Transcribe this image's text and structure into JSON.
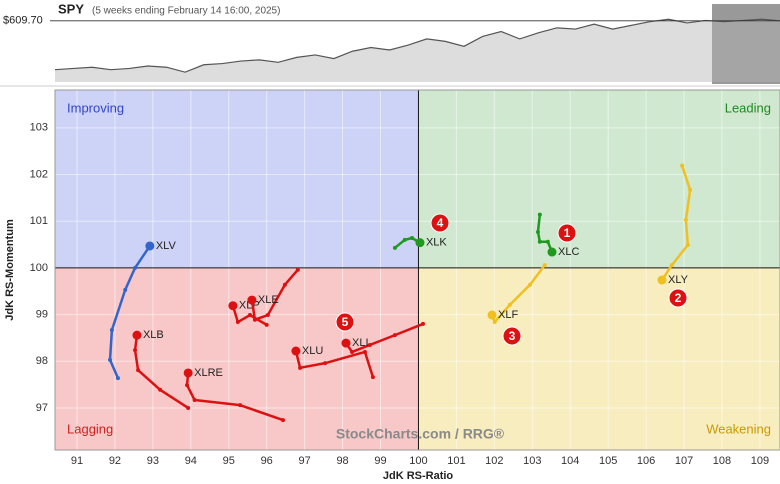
{
  "chart_data": {
    "type": "rrg",
    "header": {
      "symbol": "SPY",
      "subtitle": "(5 weeks ending February 14 16:00, 2025)"
    },
    "price": {
      "values": [
        570,
        571,
        572,
        570,
        571,
        573,
        572,
        568,
        574,
        575,
        577,
        578,
        576,
        580,
        582,
        579,
        585,
        588,
        586,
        590,
        595,
        593,
        589,
        597,
        601,
        595,
        600,
        604,
        603,
        607,
        603,
        606,
        609,
        611,
        608,
        610,
        609,
        610,
        611,
        609.7
      ],
      "last": {
        "value": 609.7,
        "label": "$609.70"
      },
      "ylim": [
        560,
        612
      ]
    },
    "xlabel": "JdK RS-Ratio",
    "ylabel": "JdK RS-Momentum",
    "xlim": [
      90.42,
      109.53
    ],
    "ylim": [
      96.1,
      103.81
    ],
    "xticks": [
      91,
      92,
      93,
      94,
      95,
      96,
      97,
      98,
      99,
      100,
      101,
      102,
      103,
      104,
      105,
      106,
      107,
      108,
      109
    ],
    "yticks": [
      97,
      98,
      99,
      100,
      101,
      102,
      103
    ],
    "center": [
      100,
      100
    ],
    "quadrants": {
      "improving": "Improving",
      "leading": "Leading",
      "lagging": "Lagging",
      "weakening": "Weakening"
    },
    "watermark": "StockCharts.com / RRG®",
    "markers": [
      "1",
      "2",
      "3",
      "4",
      "5"
    ],
    "series": [
      {
        "name": "XLV",
        "color": "#3366cc",
        "x": [
          92.08,
          91.87,
          91.92,
          92.27,
          92.53,
          92.92
        ],
        "y": [
          97.64,
          98.03,
          98.67,
          99.53,
          100.0,
          100.47
        ]
      },
      {
        "name": "XLB",
        "color": "#dd1111",
        "x": [
          93.93,
          93.19,
          92.61,
          92.53,
          92.58
        ],
        "y": [
          97.0,
          97.39,
          97.81,
          98.24,
          98.56
        ]
      },
      {
        "name": "XLRE",
        "color": "#dd1111",
        "x": [
          96.43,
          95.3,
          94.1,
          93.9,
          93.93
        ],
        "y": [
          96.74,
          97.06,
          97.17,
          97.49,
          97.75
        ]
      },
      {
        "name": "XLP",
        "color": "#dd1111",
        "x": [
          96.0,
          95.56,
          95.24,
          95.11
        ],
        "y": [
          98.78,
          98.99,
          98.84,
          99.19
        ]
      },
      {
        "name": "XLE",
        "color": "#dd1111",
        "x": [
          96.82,
          96.48,
          96.03,
          95.69,
          95.61
        ],
        "y": [
          99.96,
          99.64,
          98.99,
          98.89,
          99.31
        ]
      },
      {
        "name": "XLU",
        "color": "#dd1111",
        "x": [
          98.8,
          98.59,
          97.54,
          96.88,
          96.77
        ],
        "y": [
          97.66,
          98.2,
          97.96,
          97.86,
          98.22
        ]
      },
      {
        "name": "XLI",
        "color": "#dd1111",
        "x": [
          100.12,
          99.38,
          98.72,
          98.25,
          98.09
        ],
        "y": [
          98.8,
          98.56,
          98.35,
          98.2,
          98.39
        ]
      },
      {
        "name": "XLK",
        "color": "#1f9a1f",
        "x": [
          99.38,
          99.64,
          99.83,
          100.04
        ],
        "y": [
          100.43,
          100.6,
          100.64,
          100.54
        ]
      },
      {
        "name": "XLC",
        "color": "#1f9a1f",
        "x": [
          103.2,
          103.15,
          103.2,
          103.41,
          103.52
        ],
        "y": [
          101.14,
          100.77,
          100.56,
          100.56,
          100.34
        ]
      },
      {
        "name": "XLF",
        "color": "#f0c020",
        "x": [
          103.33,
          102.94,
          102.41,
          102.01,
          101.94
        ],
        "y": [
          100.06,
          99.64,
          99.21,
          98.84,
          98.99
        ]
      },
      {
        "name": "XLY",
        "color": "#f0c020",
        "x": [
          106.95,
          107.16,
          107.05,
          107.1,
          106.68,
          106.42
        ],
        "y": [
          102.19,
          101.67,
          101.03,
          100.49,
          100.06,
          99.74
        ]
      }
    ]
  }
}
